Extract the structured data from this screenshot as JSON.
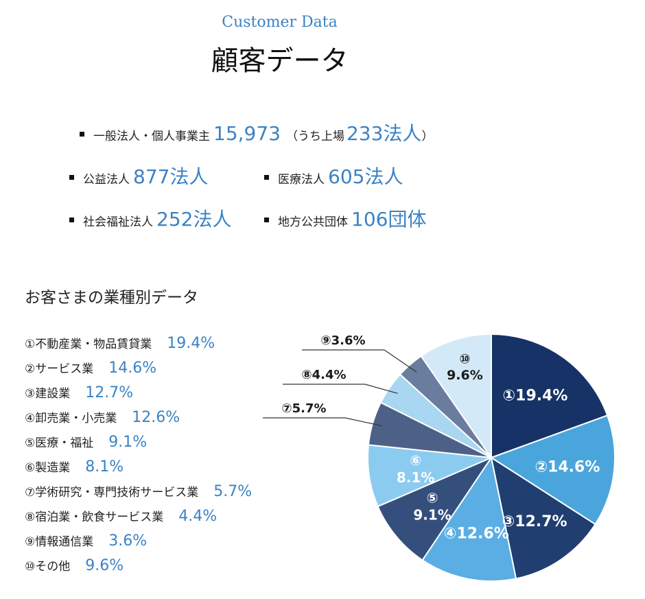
{
  "header": {
    "subtitle_en": "Customer Data",
    "title_jp": "顧客データ"
  },
  "stats": [
    {
      "label": "一般法人・個人事業主",
      "value": "15,973",
      "note": "（うち上場",
      "value2": "233法人",
      "close": "）"
    },
    {
      "label": "公益法人",
      "value": "877法人"
    },
    {
      "label": "医療法人",
      "value": "605法人"
    },
    {
      "label": "社会福祉法人",
      "value": "252法人"
    },
    {
      "label": "地方公共団体",
      "value": "106団体"
    }
  ],
  "section_title": "お客さまの業種別データ",
  "industries": [
    {
      "name": "①不動産業・物品賃貸業",
      "pct": "19.4%"
    },
    {
      "name": "②サービス業",
      "pct": "14.6%"
    },
    {
      "name": "③建設業",
      "pct": "12.7%"
    },
    {
      "name": "④卸売業・小売業",
      "pct": "12.6%"
    },
    {
      "name": "⑤医療・福祉",
      "pct": "9.1%"
    },
    {
      "name": "⑥製造業",
      "pct": "8.1%"
    },
    {
      "name": "⑦学術研究・専門技術サービス業",
      "pct": "5.7%"
    },
    {
      "name": "⑧宿泊業・飲食サービス業",
      "pct": "4.4%"
    },
    {
      "name": "⑨情報通信業",
      "pct": "3.6%"
    },
    {
      "name": "⑩その他",
      "pct": "9.6%"
    }
  ],
  "chart_data": {
    "type": "pie",
    "categories": [
      "①",
      "②",
      "③",
      "④",
      "⑤",
      "⑥",
      "⑦",
      "⑧",
      "⑨",
      "⑩"
    ],
    "values": [
      19.4,
      14.6,
      12.7,
      12.6,
      9.1,
      8.1,
      5.7,
      4.4,
      3.6,
      9.6
    ],
    "slice_labels": [
      "①19.4%",
      "②14.6%",
      "③12.7%",
      "④12.6%",
      "⑤9.1%",
      "⑥8.1%",
      "⑦5.7%",
      "⑧4.4%",
      "⑨3.6%",
      "⑩9.6%"
    ],
    "colors": [
      "#173266",
      "#4aa5dc",
      "#203f70",
      "#5aaee3",
      "#354f7d",
      "#8ccbf0",
      "#4d6188",
      "#a9d6f1",
      "#6b7d9e",
      "#d4e9f7"
    ],
    "label_colors": [
      "#ffffff",
      "#ffffff",
      "#ffffff",
      "#ffffff",
      "#ffffff",
      "#ffffff",
      "#1a1a1a",
      "#1a1a1a",
      "#1a1a1a",
      "#1a1a1a"
    ],
    "start_angle_deg": 0,
    "direction": "clockwise"
  }
}
